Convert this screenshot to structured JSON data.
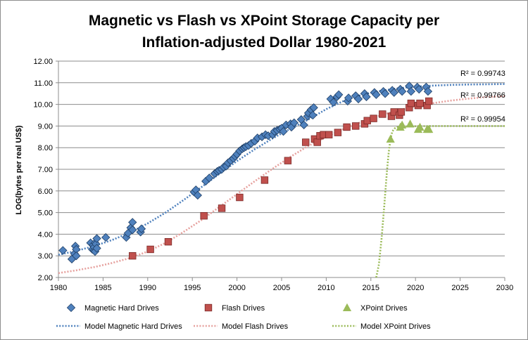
{
  "chart_data": {
    "type": "scatter",
    "title_lines": [
      "Magnetic vs Flash vs XPoint Storage Capacity per",
      "Inflation-adjusted Dollar 1980-2021"
    ],
    "xlabel": "",
    "ylabel": "LOG(bytes per real US$)",
    "xlim": [
      1980,
      2030
    ],
    "ylim": [
      2.0,
      12.0
    ],
    "x_ticks": [
      "1980",
      "1985",
      "1990",
      "1995",
      "2000",
      "2005",
      "2010",
      "2015",
      "2020",
      "2025",
      "2030"
    ],
    "y_ticks": [
      "2.00",
      "3.00",
      "4.00",
      "5.00",
      "6.00",
      "7.00",
      "8.00",
      "9.00",
      "10.00",
      "11.00",
      "12.00"
    ],
    "grid": "horizontal",
    "legend_position": "bottom",
    "r2_labels": [
      "R² = 0.99743",
      "R² = 0.99766",
      "R² = 0.99954"
    ],
    "series": [
      {
        "name": "Magnetic Hard Drives",
        "marker": "diamond",
        "color": "#4f81bd",
        "x": [
          1980.5,
          1981.5,
          1981.8,
          1981.9,
          1982.0,
          1982.0,
          1983.6,
          1983.8,
          1983.9,
          1984.0,
          1984.0,
          1984.1,
          1984.1,
          1984.2,
          1984.3,
          1984.3,
          1985.3,
          1987.6,
          1987.8,
          1988.1,
          1988.3,
          1988.3,
          1989.2,
          1989.3,
          1995.2,
          1995.4,
          1995.6,
          1996.5,
          1996.9,
          1997.5,
          1997.8,
          1998.0,
          1998.3,
          1998.5,
          1998.8,
          1999.0,
          1999.3,
          1999.6,
          1999.8,
          2000.0,
          2000.3,
          2000.6,
          2000.8,
          2001.0,
          2001.3,
          2001.6,
          2002.0,
          2002.3,
          2002.8,
          2003.2,
          2003.5,
          2004.0,
          2004.2,
          2004.5,
          2004.8,
          2005.0,
          2005.2,
          2005.5,
          2006.0,
          2006.1,
          2006.4,
          2007.2,
          2007.5,
          2007.9,
          2008.0,
          2008.3,
          2008.5,
          2008.6,
          2010.5,
          2010.8,
          2011.2,
          2011.4,
          2012.4,
          2012.5,
          2013.3,
          2013.6,
          2014.3,
          2014.5,
          2015.4,
          2015.6,
          2016.4,
          2016.6,
          2017.4,
          2017.6,
          2018.3,
          2018.5,
          2019.3,
          2019.5,
          2020.2,
          2020.4,
          2021.2,
          2021.4
        ],
        "y": [
          3.25,
          2.85,
          3.1,
          3.45,
          3.3,
          3.0,
          3.6,
          3.3,
          3.5,
          3.25,
          3.4,
          3.6,
          3.2,
          3.55,
          3.8,
          3.35,
          3.85,
          3.85,
          4.05,
          4.3,
          4.2,
          4.55,
          4.1,
          4.25,
          5.95,
          6.05,
          5.8,
          6.45,
          6.6,
          6.8,
          6.9,
          6.95,
          7.0,
          7.1,
          7.15,
          7.3,
          7.4,
          7.5,
          7.6,
          7.7,
          7.85,
          7.95,
          8.0,
          8.05,
          8.1,
          8.2,
          8.3,
          8.45,
          8.5,
          8.6,
          8.55,
          8.6,
          8.75,
          8.8,
          8.85,
          8.9,
          8.75,
          9.05,
          9.1,
          8.95,
          9.15,
          9.3,
          9.05,
          9.45,
          9.6,
          9.75,
          9.5,
          9.85,
          10.25,
          10.1,
          10.35,
          10.45,
          10.15,
          10.3,
          10.4,
          10.25,
          10.5,
          10.35,
          10.55,
          10.45,
          10.6,
          10.5,
          10.65,
          10.55,
          10.7,
          10.6,
          10.85,
          10.6,
          10.8,
          10.7,
          10.8,
          10.6
        ]
      },
      {
        "name": "Flash Drives",
        "marker": "square",
        "color": "#c0504d",
        "x": [
          1988.3,
          1990.3,
          1992.3,
          1996.3,
          1998.3,
          2000.3,
          2003.1,
          2005.7,
          2007.7,
          2008.7,
          2009.0,
          2009.3,
          2009.7,
          2010.3,
          2011.3,
          2012.3,
          2013.3,
          2014.3,
          2014.6,
          2015.3,
          2016.3,
          2017.3,
          2017.6,
          2018.2,
          2018.4,
          2019.3,
          2019.5,
          2020.3,
          2020.5,
          2021.3,
          2021.5
        ],
        "y": [
          3.0,
          3.3,
          3.65,
          4.85,
          5.2,
          5.7,
          6.5,
          7.4,
          8.25,
          8.4,
          8.25,
          8.55,
          8.6,
          8.6,
          8.7,
          8.95,
          9.0,
          9.1,
          9.25,
          9.35,
          9.55,
          9.45,
          9.65,
          9.5,
          9.65,
          9.85,
          10.05,
          9.95,
          10.05,
          9.95,
          10.15
        ]
      },
      {
        "name": "XPoint Drives",
        "marker": "triangle",
        "color": "#9bbb59",
        "x": [
          2017.2,
          2018.3,
          2018.5,
          2019.4,
          2020.3,
          2020.5,
          2021.3,
          2021.5
        ],
        "y": [
          8.4,
          8.95,
          9.05,
          9.1,
          8.85,
          8.95,
          8.85,
          8.85
        ]
      },
      {
        "name": "Model Magnetic Hard Drives",
        "marker": "dotted-line",
        "color": "#4f81bd",
        "x": [
          1980,
          1982,
          1984,
          1986,
          1988,
          1990,
          1992,
          1994,
          1996,
          1998,
          2000,
          2002,
          2004,
          2006,
          2008,
          2010,
          2012,
          2014,
          2016,
          2018,
          2020,
          2022,
          2024,
          2026,
          2028,
          2030
        ],
        "y": [
          3.05,
          3.23,
          3.45,
          3.73,
          4.07,
          4.5,
          5.0,
          5.57,
          6.17,
          6.78,
          7.38,
          7.93,
          8.43,
          8.88,
          9.3,
          9.78,
          10.17,
          10.44,
          10.62,
          10.74,
          10.82,
          10.87,
          10.9,
          10.92,
          10.93,
          10.94
        ]
      },
      {
        "name": "Model Flash Drives",
        "marker": "dotted-line",
        "color": "#e6a19e",
        "x": [
          1980,
          1982,
          1984,
          1986,
          1988,
          1990,
          1992,
          1994,
          1996,
          1998,
          2000,
          2002,
          2004,
          2006,
          2008,
          2010,
          2012,
          2014,
          2016,
          2018,
          2020,
          2022,
          2024,
          2026,
          2028,
          2030
        ],
        "y": [
          2.2,
          2.33,
          2.48,
          2.67,
          2.9,
          3.2,
          3.6,
          4.1,
          4.65,
          5.25,
          5.85,
          6.45,
          7.03,
          7.58,
          8.08,
          8.5,
          8.87,
          9.2,
          9.48,
          9.72,
          9.92,
          10.06,
          10.18,
          10.27,
          10.34,
          10.38
        ]
      },
      {
        "name": "Model XPoint Drives",
        "marker": "dotted-line",
        "color": "#9bbb59",
        "x": [
          2015.6,
          2015.9,
          2016.2,
          2016.5,
          2016.8,
          2017.0,
          2017.2,
          2017.4,
          2017.7,
          2018.0,
          2018.5,
          2019.0,
          2020.0,
          2022.0,
          2025.0,
          2030.0
        ],
        "y": [
          2.0,
          2.6,
          3.8,
          5.3,
          6.9,
          7.8,
          8.4,
          8.75,
          8.9,
          8.95,
          8.97,
          8.98,
          8.99,
          9.0,
          9.0,
          9.0
        ]
      }
    ]
  }
}
